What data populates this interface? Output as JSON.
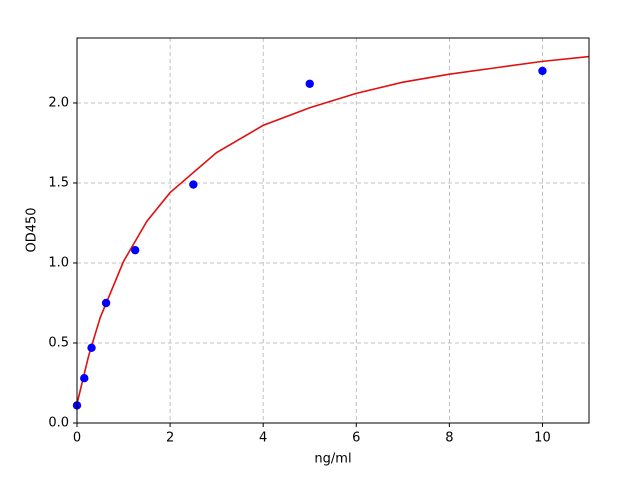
{
  "chart_data": {
    "type": "scatter",
    "xlabel": "ng/ml",
    "ylabel": "OD450",
    "xlim": [
      0,
      11
    ],
    "ylim": [
      0,
      2.406
    ],
    "xticks": [
      0,
      2,
      4,
      6,
      8,
      10
    ],
    "yticks": [
      {
        "value": 0,
        "label": "0.0"
      },
      {
        "value": 0.5,
        "label": "0.5"
      },
      {
        "value": 1,
        "label": "1.0"
      },
      {
        "value": 1.5,
        "label": "1.5"
      },
      {
        "value": 2,
        "label": "2.0"
      }
    ],
    "grid": true,
    "series": [
      {
        "type": "scatter",
        "color": "#0000ff",
        "x": [
          0,
          0.156,
          0.3125,
          0.625,
          1.25,
          2.5,
          5,
          10
        ],
        "values": [
          0.11,
          0.28,
          0.47,
          0.75,
          1.08,
          1.49,
          2.12,
          2.2
        ]
      },
      {
        "type": "line",
        "color": "#e01010",
        "x": [
          0,
          0.25,
          0.5,
          1,
          1.5,
          2,
          3,
          4,
          5,
          6,
          7,
          8,
          9,
          10,
          11
        ],
        "values": [
          0.12,
          0.42,
          0.66,
          1.01,
          1.26,
          1.44,
          1.69,
          1.86,
          1.97,
          2.06,
          2.13,
          2.18,
          2.22,
          2.26,
          2.29
        ]
      }
    ]
  }
}
